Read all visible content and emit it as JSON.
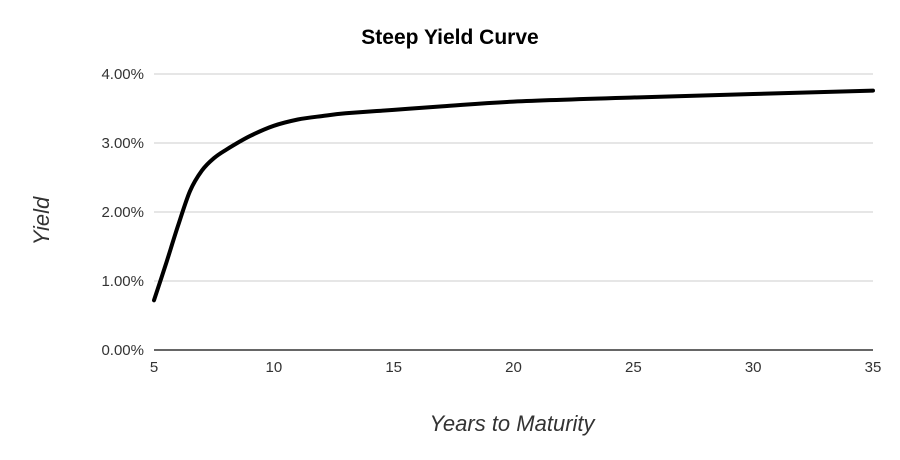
{
  "chart_data": {
    "type": "line",
    "title": "Steep Yield Curve",
    "xlabel": "Years to Maturity",
    "ylabel": "Yield",
    "xlim": [
      5,
      35
    ],
    "ylim": [
      0,
      4
    ],
    "x_ticks": [
      5,
      10,
      15,
      20,
      25,
      30,
      35
    ],
    "x_tick_labels": [
      "5",
      "10",
      "15",
      "20",
      "25",
      "30",
      "35"
    ],
    "y_ticks": [
      0,
      1,
      2,
      3,
      4
    ],
    "y_tick_labels": [
      "0.00%",
      "1.00%",
      "2.00%",
      "3.00%",
      "4.00%"
    ],
    "grid": true,
    "legend": "none",
    "line_color": "#000000",
    "series": [
      {
        "x": [
          5,
          5.5,
          6,
          6.5,
          7,
          7.5,
          8,
          9,
          10,
          11,
          12,
          13,
          15,
          17,
          20,
          25,
          30,
          35
        ],
        "y": [
          0.72,
          1.25,
          1.8,
          2.3,
          2.6,
          2.78,
          2.9,
          3.1,
          3.25,
          3.34,
          3.39,
          3.43,
          3.48,
          3.53,
          3.6,
          3.66,
          3.71,
          3.76
        ]
      }
    ]
  }
}
